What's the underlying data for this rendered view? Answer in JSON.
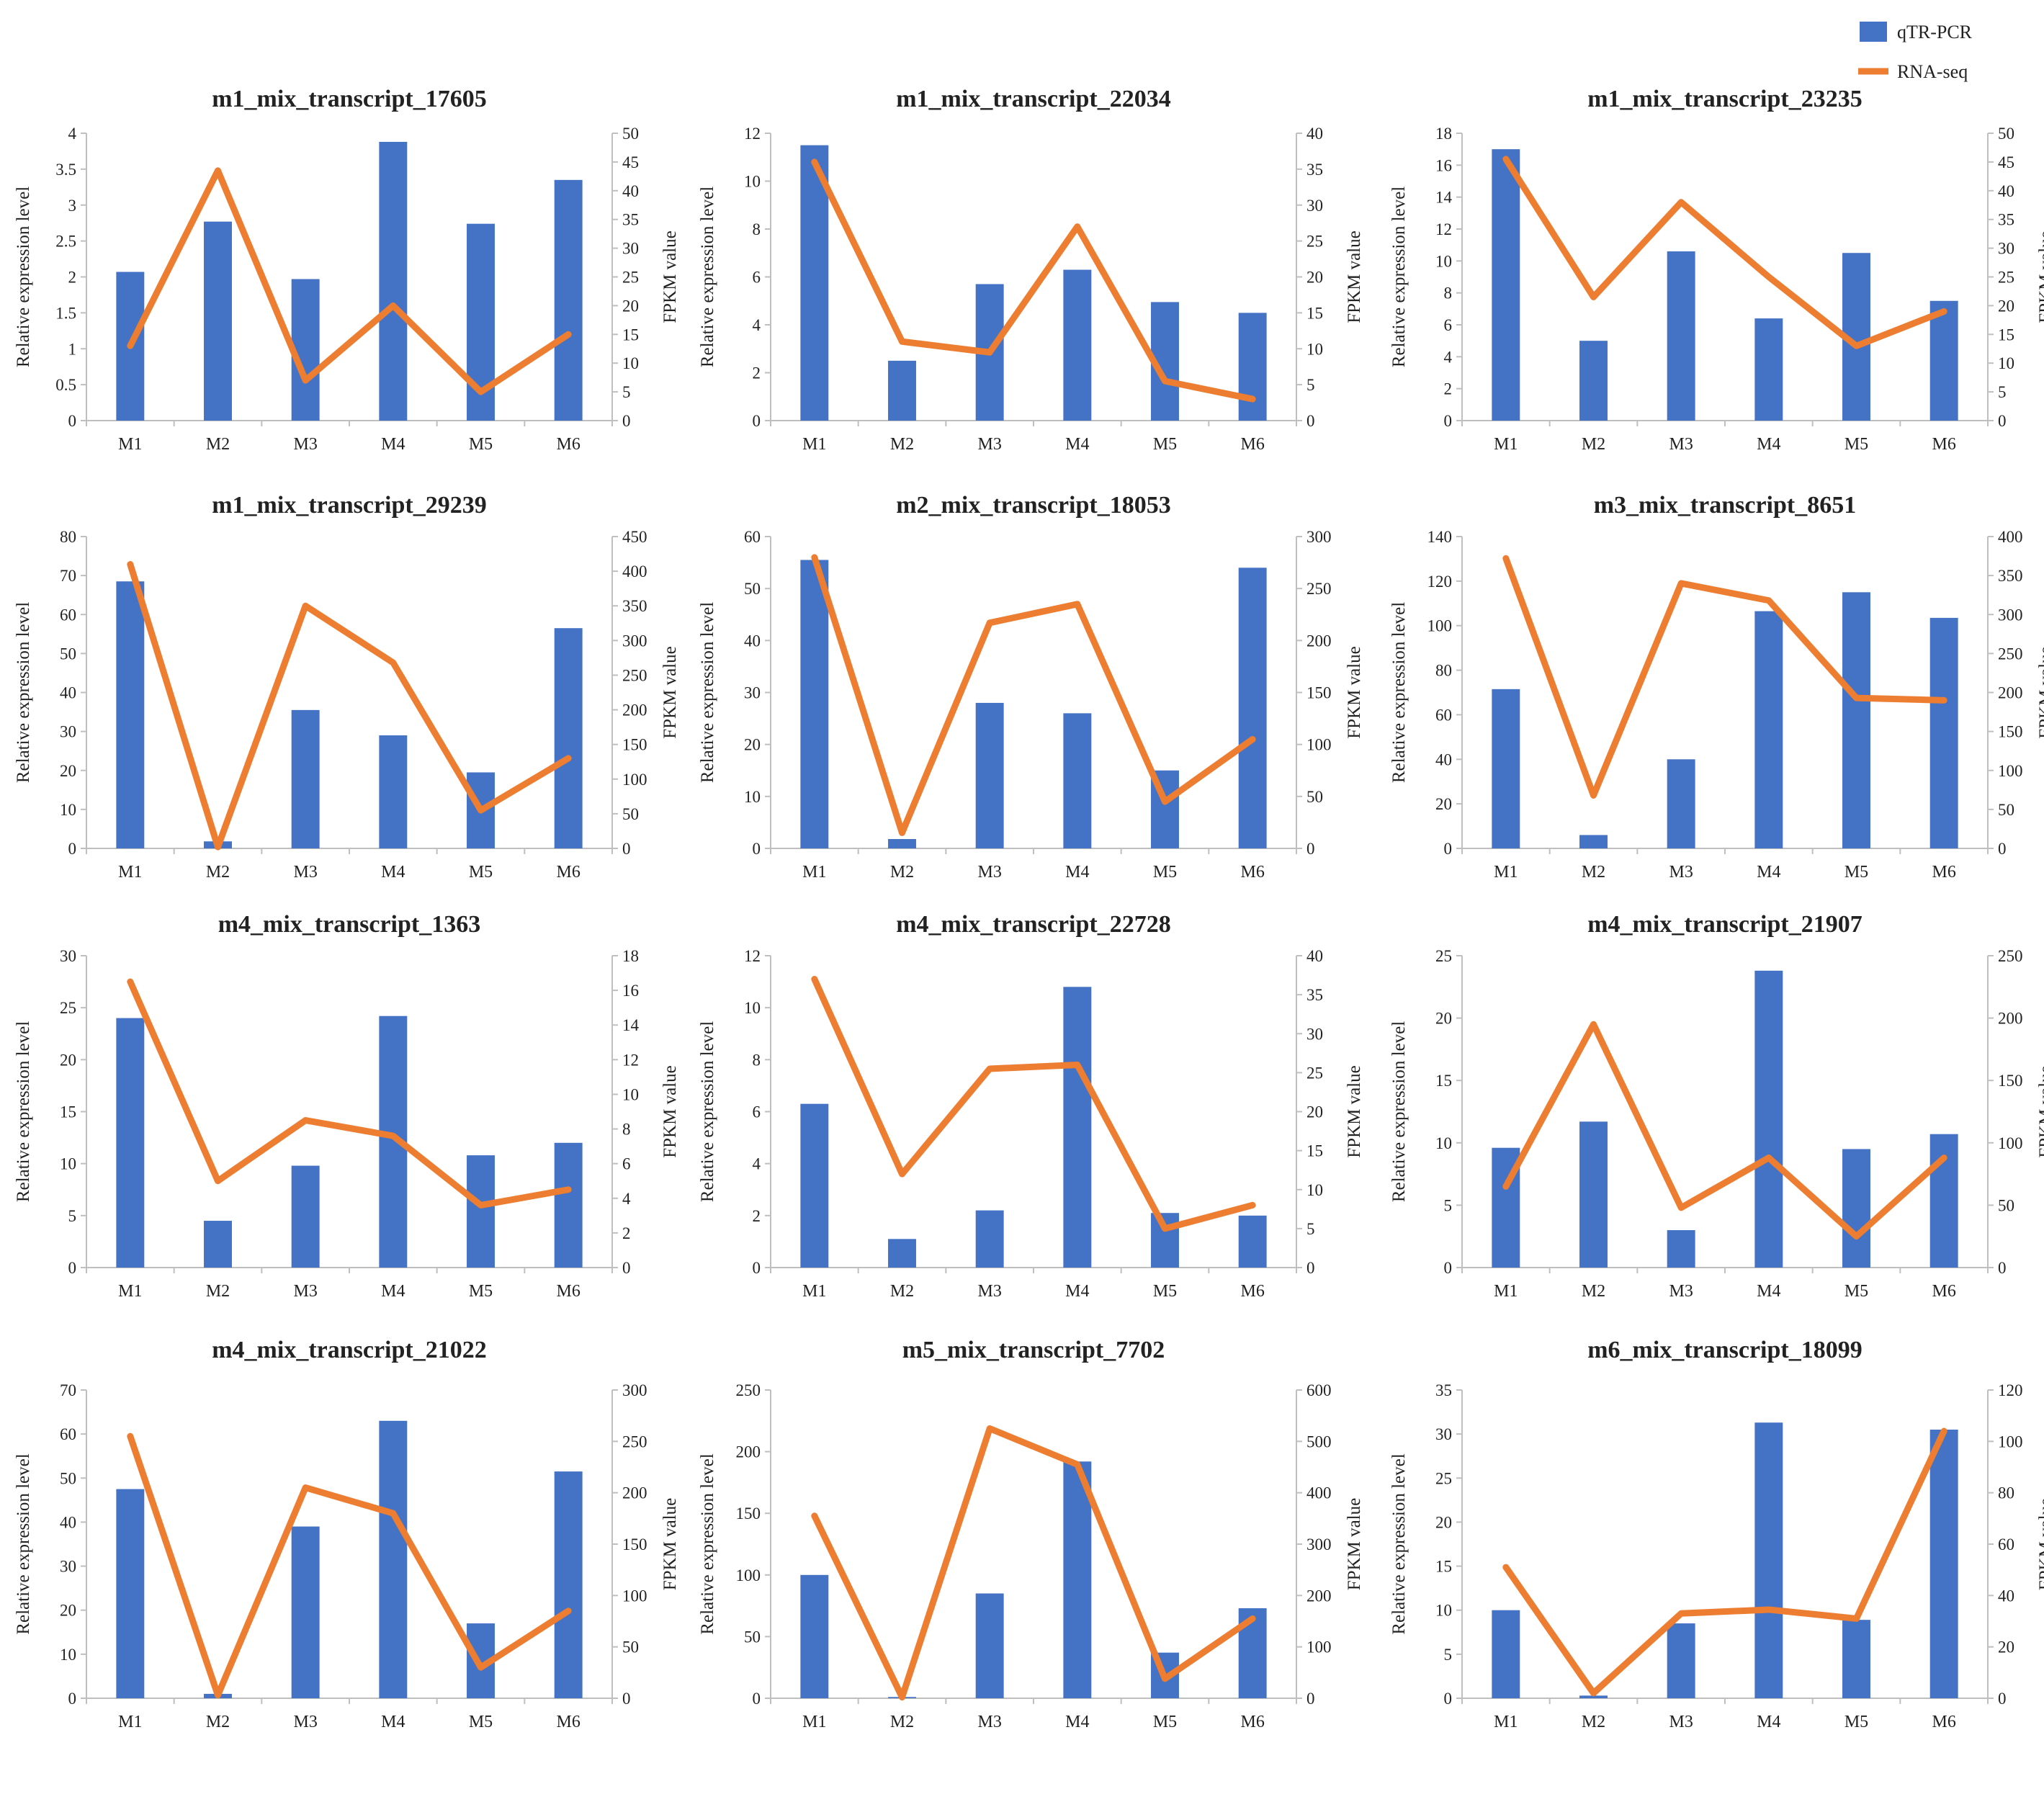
{
  "legend": {
    "bar_label": "qTR-PCR",
    "line_label": "RNA-seq"
  },
  "colors": {
    "bar": "#4472C4",
    "line": "#ED7D31",
    "axis": "#BFBFBF",
    "text": "#222222"
  },
  "chart_data": [
    {
      "type": "bar+line",
      "title": "m1_mix_transcript_17605",
      "categories": [
        "M1",
        "M2",
        "M3",
        "M4",
        "M5",
        "M6"
      ],
      "ylabel": "Relative expression level",
      "y2label": "FPKM value",
      "ylim": [
        0,
        4
      ],
      "yticks": [
        0,
        0.5,
        1,
        1.5,
        2,
        2.5,
        3,
        3.5,
        4
      ],
      "y2lim": [
        0,
        50
      ],
      "y2ticks": [
        0,
        5,
        10,
        15,
        20,
        25,
        30,
        35,
        40,
        45,
        50
      ],
      "series": [
        {
          "name": "qTR-PCR",
          "kind": "bar",
          "values": [
            2.07,
            2.77,
            1.97,
            3.88,
            2.74,
            3.35
          ]
        },
        {
          "name": "RNA-seq",
          "kind": "line",
          "values": [
            13,
            43.5,
            7,
            20,
            5,
            15
          ]
        }
      ]
    },
    {
      "type": "bar+line",
      "title": "m1_mix_transcript_22034",
      "categories": [
        "M1",
        "M2",
        "M3",
        "M4",
        "M5",
        "M6"
      ],
      "ylabel": "Relative expression level",
      "y2label": "FPKM value",
      "ylim": [
        0,
        12
      ],
      "yticks": [
        0,
        2,
        4,
        6,
        8,
        10,
        12
      ],
      "y2lim": [
        0,
        40
      ],
      "y2ticks": [
        0,
        5,
        10,
        15,
        20,
        25,
        30,
        35,
        40
      ],
      "series": [
        {
          "name": "qTR-PCR",
          "kind": "bar",
          "values": [
            11.5,
            2.5,
            5.7,
            6.3,
            4.95,
            4.5
          ]
        },
        {
          "name": "RNA-seq",
          "kind": "line",
          "values": [
            36,
            11,
            9.5,
            27,
            5.5,
            3
          ]
        }
      ]
    },
    {
      "type": "bar+line",
      "title": "m1_mix_transcript_23235",
      "categories": [
        "M1",
        "M2",
        "M3",
        "M4",
        "M5",
        "M6"
      ],
      "ylabel": "Relative expression level",
      "y2label": "FPKM value",
      "ylim": [
        0,
        18
      ],
      "yticks": [
        0,
        2,
        4,
        6,
        8,
        10,
        12,
        14,
        16,
        18
      ],
      "y2lim": [
        0,
        50
      ],
      "y2ticks": [
        0,
        5,
        10,
        15,
        20,
        25,
        30,
        35,
        40,
        45,
        50
      ],
      "series": [
        {
          "name": "qTR-PCR",
          "kind": "bar",
          "values": [
            17,
            5,
            10.6,
            6.4,
            10.5,
            7.5
          ]
        },
        {
          "name": "RNA-seq",
          "kind": "line",
          "values": [
            45.5,
            21.5,
            38,
            25,
            13,
            19
          ]
        }
      ]
    },
    {
      "type": "bar+line",
      "title": "m1_mix_transcript_29239",
      "categories": [
        "M1",
        "M2",
        "M3",
        "M4",
        "M5",
        "M6"
      ],
      "ylabel": "Relative expression level",
      "y2label": "FPKM value",
      "ylim": [
        0,
        80
      ],
      "yticks": [
        0,
        10,
        20,
        30,
        40,
        50,
        60,
        70,
        80
      ],
      "y2lim": [
        0,
        450
      ],
      "y2ticks": [
        0,
        50,
        100,
        150,
        200,
        250,
        300,
        350,
        400,
        450
      ],
      "series": [
        {
          "name": "qTR-PCR",
          "kind": "bar",
          "values": [
            68.5,
            1.8,
            35.5,
            29,
            19.5,
            56.5
          ]
        },
        {
          "name": "RNA-seq",
          "kind": "line",
          "values": [
            410,
            2,
            350,
            268,
            55,
            130
          ]
        }
      ]
    },
    {
      "type": "bar+line",
      "title": "m2_mix_transcript_18053",
      "categories": [
        "M1",
        "M2",
        "M3",
        "M4",
        "M5",
        "M6"
      ],
      "ylabel": "Relative expression level",
      "y2label": "FPKM value",
      "ylim": [
        0,
        60
      ],
      "yticks": [
        0,
        10,
        20,
        30,
        40,
        50,
        60
      ],
      "y2lim": [
        0,
        300
      ],
      "y2ticks": [
        0,
        50,
        100,
        150,
        200,
        250,
        300
      ],
      "series": [
        {
          "name": "qTR-PCR",
          "kind": "bar",
          "values": [
            55.5,
            1.8,
            28,
            26,
            15,
            54
          ]
        },
        {
          "name": "RNA-seq",
          "kind": "line",
          "values": [
            280,
            15,
            217,
            235,
            45,
            105
          ]
        }
      ]
    },
    {
      "type": "bar+line",
      "title": "m3_mix_transcript_8651",
      "categories": [
        "M1",
        "M2",
        "M3",
        "M4",
        "M5",
        "M6"
      ],
      "ylabel": "Relative expression level",
      "y2label": "FPKM value",
      "ylim": [
        0,
        140
      ],
      "yticks": [
        0,
        20,
        40,
        60,
        80,
        100,
        120,
        140
      ],
      "y2lim": [
        0,
        400
      ],
      "y2ticks": [
        0,
        50,
        100,
        150,
        200,
        250,
        300,
        350,
        400
      ],
      "series": [
        {
          "name": "qTR-PCR",
          "kind": "bar",
          "values": [
            71.5,
            6,
            40,
            106.5,
            115,
            103.5
          ]
        },
        {
          "name": "RNA-seq",
          "kind": "line",
          "values": [
            372,
            68,
            340,
            318,
            193,
            190
          ]
        }
      ]
    },
    {
      "type": "bar+line",
      "title": "m4_mix_transcript_1363",
      "categories": [
        "M1",
        "M2",
        "M3",
        "M4",
        "M5",
        "M6"
      ],
      "ylabel": "Relative expression level",
      "y2label": "FPKM value",
      "ylim": [
        0,
        30
      ],
      "yticks": [
        0,
        5,
        10,
        15,
        20,
        25,
        30
      ],
      "y2lim": [
        0,
        18
      ],
      "y2ticks": [
        0,
        2,
        4,
        6,
        8,
        10,
        12,
        14,
        16,
        18
      ],
      "series": [
        {
          "name": "qTR-PCR",
          "kind": "bar",
          "values": [
            24,
            4.5,
            9.8,
            24.2,
            10.8,
            12
          ]
        },
        {
          "name": "RNA-seq",
          "kind": "line",
          "values": [
            16.5,
            5,
            8.5,
            7.6,
            3.6,
            4.5
          ]
        }
      ]
    },
    {
      "type": "bar+line",
      "title": "m4_mix_transcript_22728",
      "categories": [
        "M1",
        "M2",
        "M3",
        "M4",
        "M5",
        "M6"
      ],
      "ylabel": "Relative expression level",
      "y2label": "FPKM value",
      "ylim": [
        0,
        12
      ],
      "yticks": [
        0,
        2,
        4,
        6,
        8,
        10,
        12
      ],
      "y2lim": [
        0,
        40
      ],
      "y2ticks": [
        0,
        5,
        10,
        15,
        20,
        25,
        30,
        35,
        40
      ],
      "series": [
        {
          "name": "qTR-PCR",
          "kind": "bar",
          "values": [
            6.3,
            1.1,
            2.2,
            10.8,
            2.1,
            2
          ]
        },
        {
          "name": "RNA-seq",
          "kind": "line",
          "values": [
            37,
            12,
            25.5,
            26,
            5,
            8
          ]
        }
      ]
    },
    {
      "type": "bar+line",
      "title": "m4_mix_transcript_21907",
      "categories": [
        "M1",
        "M2",
        "M3",
        "M4",
        "M5",
        "M6"
      ],
      "ylabel": "Relative expression level",
      "y2label": "FPKM value",
      "ylim": [
        0,
        25
      ],
      "yticks": [
        0,
        5,
        10,
        15,
        20,
        25
      ],
      "y2lim": [
        0,
        250
      ],
      "y2ticks": [
        0,
        50,
        100,
        150,
        200,
        250
      ],
      "series": [
        {
          "name": "qTR-PCR",
          "kind": "bar",
          "values": [
            9.6,
            11.7,
            3,
            23.8,
            9.5,
            10.7
          ]
        },
        {
          "name": "RNA-seq",
          "kind": "line",
          "values": [
            65,
            195,
            48,
            88,
            25,
            88
          ]
        }
      ]
    },
    {
      "type": "bar+line",
      "title": "m4_mix_transcript_21022",
      "categories": [
        "M1",
        "M2",
        "M3",
        "M4",
        "M5",
        "M6"
      ],
      "ylabel": "Relative expression level",
      "y2label": "FPKM value",
      "ylim": [
        0,
        70
      ],
      "yticks": [
        0,
        10,
        20,
        30,
        40,
        50,
        60,
        70
      ],
      "y2lim": [
        0,
        300
      ],
      "y2ticks": [
        0,
        50,
        100,
        150,
        200,
        250,
        300
      ],
      "series": [
        {
          "name": "qTR-PCR",
          "kind": "bar",
          "values": [
            47.5,
            1,
            39,
            63,
            17,
            51.5
          ]
        },
        {
          "name": "RNA-seq",
          "kind": "line",
          "values": [
            255,
            3,
            205,
            180,
            30,
            85
          ]
        }
      ]
    },
    {
      "type": "bar+line",
      "title": "m5_mix_transcript_7702",
      "categories": [
        "M1",
        "M2",
        "M3",
        "M4",
        "M5",
        "M6"
      ],
      "ylabel": "Relative expression level",
      "y2label": "FPKM value",
      "ylim": [
        0,
        250
      ],
      "yticks": [
        0,
        50,
        100,
        150,
        200,
        250
      ],
      "y2lim": [
        0,
        600
      ],
      "y2ticks": [
        0,
        100,
        200,
        300,
        400,
        500,
        600
      ],
      "series": [
        {
          "name": "qTR-PCR",
          "kind": "bar",
          "values": [
            100,
            1,
            85,
            192,
            37,
            73
          ]
        },
        {
          "name": "RNA-seq",
          "kind": "line",
          "values": [
            355,
            2,
            525,
            455,
            38,
            155
          ]
        }
      ]
    },
    {
      "type": "bar+line",
      "title": "m6_mix_transcript_18099",
      "categories": [
        "M1",
        "M2",
        "M3",
        "M4",
        "M5",
        "M6"
      ],
      "ylabel": "Relative expression level",
      "y2label": "FPKM value",
      "ylim": [
        0,
        35
      ],
      "yticks": [
        0,
        5,
        10,
        15,
        20,
        25,
        30,
        35
      ],
      "y2lim": [
        0,
        120
      ],
      "y2ticks": [
        0,
        20,
        40,
        60,
        80,
        100,
        120
      ],
      "series": [
        {
          "name": "qTR-PCR",
          "kind": "bar",
          "values": [
            10,
            0.3,
            8.5,
            31.3,
            8.9,
            30.5
          ]
        },
        {
          "name": "RNA-seq",
          "kind": "line",
          "values": [
            51,
            2,
            33,
            34.5,
            31,
            104
          ]
        }
      ]
    }
  ]
}
